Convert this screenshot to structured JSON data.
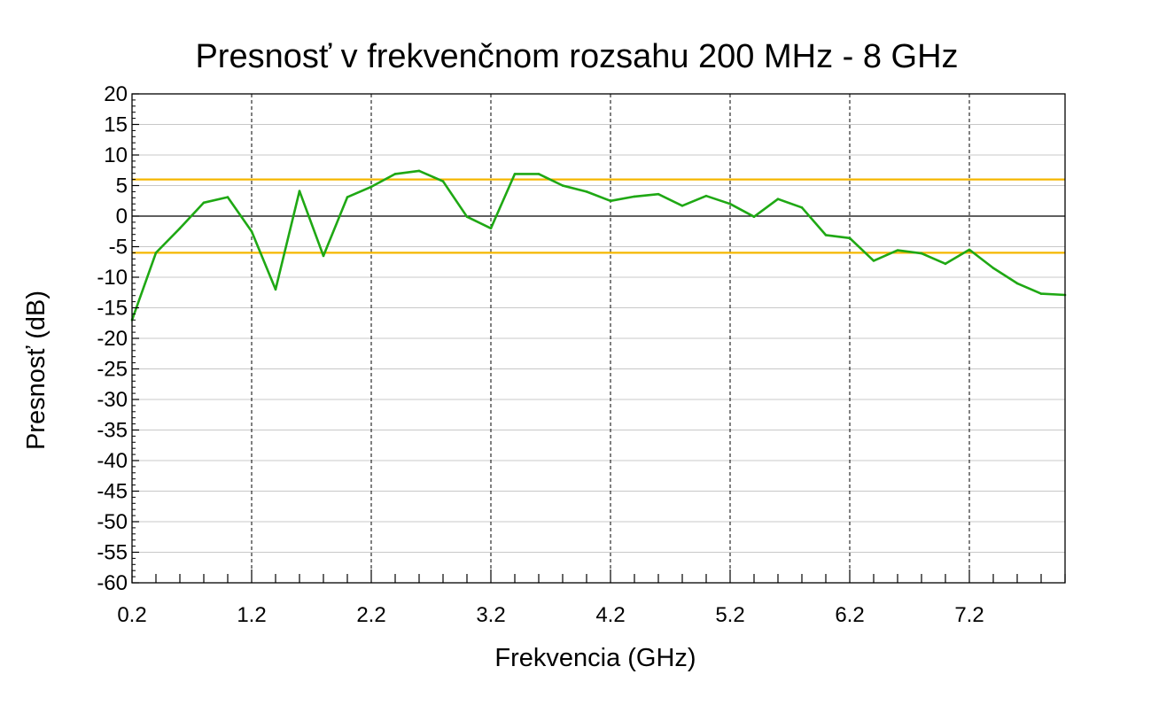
{
  "chart_data": {
    "type": "line",
    "title": "Presnosť v frekvenčnom rozsahu 200 MHz - 8 GHz",
    "xlabel": "Frekvencia (GHz)",
    "ylabel": "Presnosť (dB)",
    "xlim": [
      0.2,
      8.0
    ],
    "ylim": [
      -60,
      20
    ],
    "x_ticks": [
      0.2,
      1.2,
      2.2,
      3.2,
      4.2,
      5.2,
      6.2,
      7.2
    ],
    "x_tick_labels": [
      "0.2",
      "1.2",
      "2.2",
      "3.2",
      "4.2",
      "5.2",
      "6.2",
      "7.2"
    ],
    "y_ticks": [
      20,
      15,
      10,
      5,
      0,
      -5,
      -10,
      -15,
      -20,
      -25,
      -30,
      -35,
      -40,
      -45,
      -50,
      -55,
      -60
    ],
    "y_tick_labels": [
      "20",
      "15",
      "10",
      "5",
      "0",
      "-5",
      "-10",
      "-15",
      "-20",
      "-25",
      "-30",
      "-35",
      "-40",
      "-45",
      "-50",
      "-55",
      "-60"
    ],
    "grid": {
      "horizontal": true,
      "vertical_dashed": true
    },
    "reference_lines": [
      {
        "y": 6,
        "color": "#f5b700"
      },
      {
        "y": -6,
        "color": "#f5b700"
      },
      {
        "y": 0,
        "color": "#000000"
      }
    ],
    "series": [
      {
        "color": "#1fa814",
        "x": [
          0.2,
          0.4,
          0.6,
          0.8,
          1.0,
          1.2,
          1.4,
          1.6,
          1.8,
          2.0,
          2.2,
          2.4,
          2.6,
          2.8,
          3.0,
          3.2,
          3.4,
          3.6,
          3.8,
          4.0,
          4.2,
          4.4,
          4.6,
          4.8,
          5.0,
          5.2,
          5.4,
          5.6,
          5.8,
          6.0,
          6.2,
          6.4,
          6.6,
          6.8,
          7.0,
          7.2,
          7.4,
          7.6,
          7.8,
          8.0
        ],
        "y": [
          -17,
          -6,
          -2,
          2.2,
          3.1,
          -2.5,
          -12,
          4.1,
          -6.5,
          3.1,
          4.8,
          6.9,
          7.4,
          5.7,
          -0.1,
          -2,
          6.9,
          6.9,
          5,
          4,
          2.5,
          3.2,
          3.6,
          1.7,
          3.3,
          2,
          -0.1,
          2.8,
          1.4,
          -3.1,
          -3.6,
          -7.3,
          -5.6,
          -6.1,
          -7.8,
          -5.5,
          -8.5,
          -11,
          -12.7,
          -12.9
        ]
      }
    ]
  }
}
